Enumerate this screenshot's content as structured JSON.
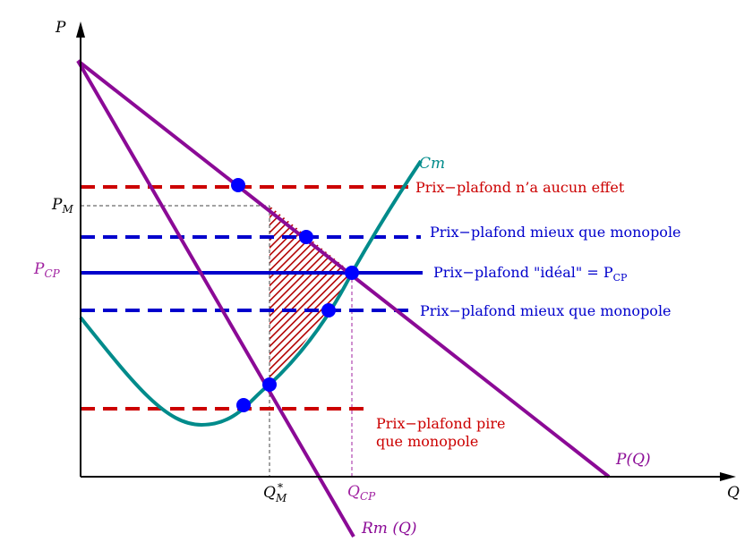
{
  "axes": {
    "y_label": "P",
    "x_label": "Q"
  },
  "curves": {
    "demand": "P(Q)",
    "marginal_revenue": "Rm (Q)",
    "marginal_cost": "Cm"
  },
  "price_labels": {
    "monopoly_main": "P",
    "monopoly_sub": "M",
    "ceiling_main": "P",
    "ceiling_sub": "CP"
  },
  "quantity_labels": {
    "monopoly_main": "Q",
    "monopoly_sub": "M",
    "monopoly_sup": "*",
    "ceiling_main": "Q",
    "ceiling_sub": "CP"
  },
  "ceilings": {
    "no_effect": "Prix−plafond n’a aucun effet",
    "better_upper": "Prix−plafond mieux que monopole",
    "ideal_prefix": "Prix−plafond \"idéal\" = P",
    "ideal_sub": "CP",
    "better_lower": "Prix−plafond mieux que monopole",
    "worse_line1": "Prix−plafond pire",
    "worse_line2": "que monopole"
  },
  "colors": {
    "demand": "#8b0a96",
    "marginal_revenue": "#8b0a96",
    "marginal_cost": "#008b8b",
    "red_ceiling": "#cc0000",
    "blue_ceiling": "#0000cc",
    "point": "#0000ff",
    "hatch": "#b30000"
  }
}
